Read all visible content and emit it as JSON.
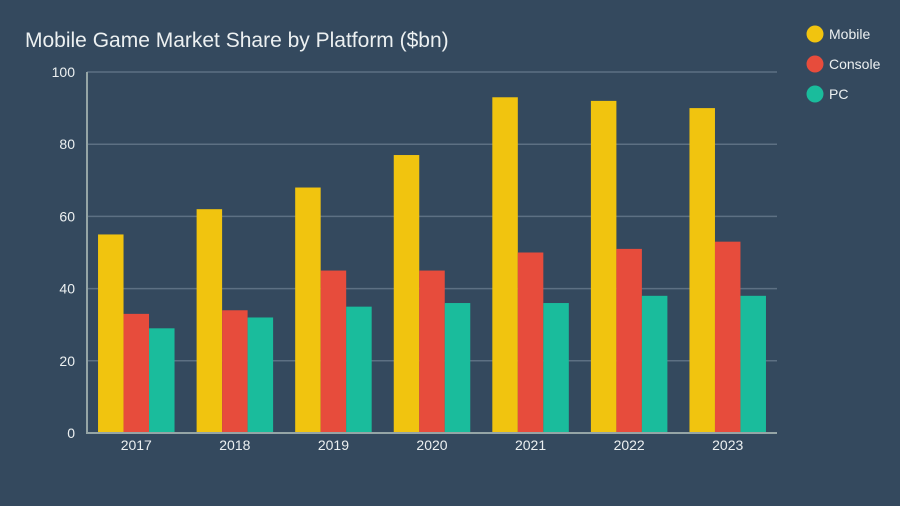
{
  "chart_data": {
    "type": "bar",
    "title": "Mobile Game Market Share by Platform ($bn)",
    "xlabel": "",
    "ylabel": "",
    "categories": [
      "2017",
      "2018",
      "2019",
      "2020",
      "2021",
      "2022",
      "2023"
    ],
    "series": [
      {
        "name": "Mobile",
        "color": "#f1c40f",
        "values": [
          55,
          62,
          68,
          77,
          93,
          92,
          90
        ]
      },
      {
        "name": "Console",
        "color": "#e74c3c",
        "values": [
          33,
          34,
          45,
          45,
          50,
          51,
          53
        ]
      },
      {
        "name": "PC",
        "color": "#1abc9c",
        "values": [
          29,
          32,
          35,
          36,
          36,
          38,
          38
        ]
      }
    ],
    "ylim": [
      0,
      100
    ],
    "yticks": [
      "0",
      "20",
      "40",
      "60",
      "80",
      "100"
    ],
    "grid": true,
    "legend": "top-right"
  }
}
